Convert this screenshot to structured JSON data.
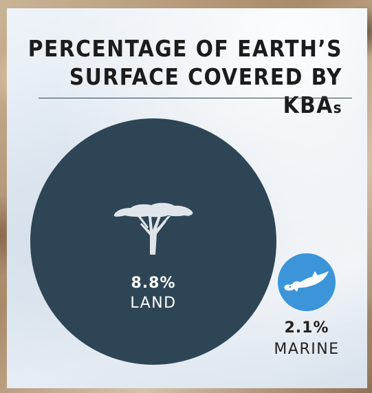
{
  "title": {
    "line1": "PERCENTAGE OF EARTH’S",
    "line2": "SURFACE COVERED BY KBA",
    "line2_suffix": "s"
  },
  "land": {
    "value": "8.8%",
    "label": "LAND",
    "icon": "acacia-tree-icon",
    "color": "#2e4555"
  },
  "marine": {
    "value": "2.1%",
    "label": "MARINE",
    "icon": "hammerhead-shark-icon",
    "color": "#3b95d8"
  }
}
